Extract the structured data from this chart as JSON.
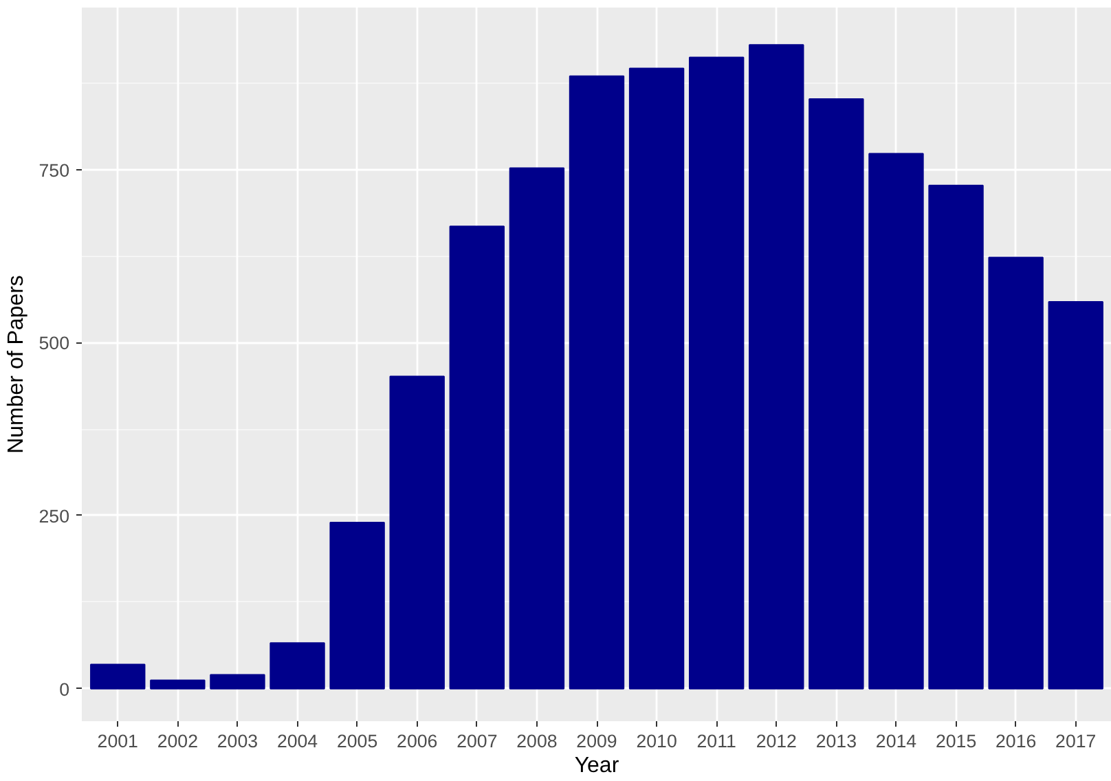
{
  "chart_data": {
    "type": "bar",
    "xlabel": "Year",
    "ylabel": "Number of Papers",
    "categories": [
      "2001",
      "2002",
      "2003",
      "2004",
      "2005",
      "2006",
      "2007",
      "2008",
      "2009",
      "2010",
      "2011",
      "2012",
      "2013",
      "2014",
      "2015",
      "2016",
      "2017"
    ],
    "values": [
      35,
      12,
      20,
      66,
      240,
      451,
      668,
      752,
      885,
      896,
      912,
      930,
      852,
      773,
      727,
      623,
      559
    ],
    "color": "#00008b",
    "ylim": [
      -47,
      984
    ],
    "yticks": [
      0,
      250,
      500,
      750
    ],
    "grid": true
  }
}
